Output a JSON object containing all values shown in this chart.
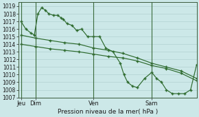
{
  "title": "Pression niveau de la mer( hPa )",
  "bg_color": "#cce8e8",
  "grid_color": "#aacccc",
  "line_color": "#2d6a2d",
  "ylim": [
    1007,
    1019.5
  ],
  "yticks": [
    1007,
    1008,
    1009,
    1010,
    1011,
    1012,
    1013,
    1014,
    1015,
    1016,
    1017,
    1018,
    1019
  ],
  "day_positions": [
    0,
    12,
    60,
    108
  ],
  "day_labels": [
    "Jeu",
    "Dim",
    "Ven",
    "Sam"
  ],
  "xlim": [
    -2,
    145
  ],
  "series1_x": [
    0,
    4,
    8,
    11,
    14,
    17,
    20,
    23,
    27,
    30,
    33,
    35,
    38,
    42,
    46,
    50,
    55,
    60,
    65,
    70,
    76,
    82,
    85,
    88,
    92,
    96,
    102,
    108,
    112,
    116,
    120,
    125,
    130,
    135,
    140,
    145
  ],
  "series1_y": [
    1017.0,
    1016.0,
    1015.5,
    1015.2,
    1018.0,
    1018.8,
    1018.5,
    1018.0,
    1017.8,
    1017.8,
    1017.5,
    1017.3,
    1016.7,
    1016.5,
    1015.8,
    1016.0,
    1015.0,
    1015.0,
    1015.0,
    1013.5,
    1013.0,
    1011.5,
    1010.0,
    1009.0,
    1008.5,
    1008.3,
    1009.5,
    1010.3,
    1009.5,
    1009.0,
    1008.0,
    1007.5,
    1007.5,
    1007.5,
    1008.0,
    1011.3
  ],
  "series2_x": [
    0,
    12,
    24,
    36,
    48,
    60,
    72,
    84,
    96,
    108,
    120,
    132,
    145
  ],
  "series2_y": [
    1015.2,
    1014.8,
    1014.5,
    1014.2,
    1014.0,
    1013.5,
    1013.2,
    1012.8,
    1012.2,
    1011.5,
    1011.0,
    1010.5,
    1009.5
  ],
  "series3_x": [
    0,
    12,
    24,
    36,
    48,
    60,
    72,
    84,
    96,
    108,
    120,
    132,
    145
  ],
  "series3_y": [
    1014.0,
    1013.7,
    1013.4,
    1013.2,
    1013.0,
    1012.7,
    1012.4,
    1012.2,
    1011.8,
    1011.2,
    1010.8,
    1010.2,
    1009.2
  ]
}
